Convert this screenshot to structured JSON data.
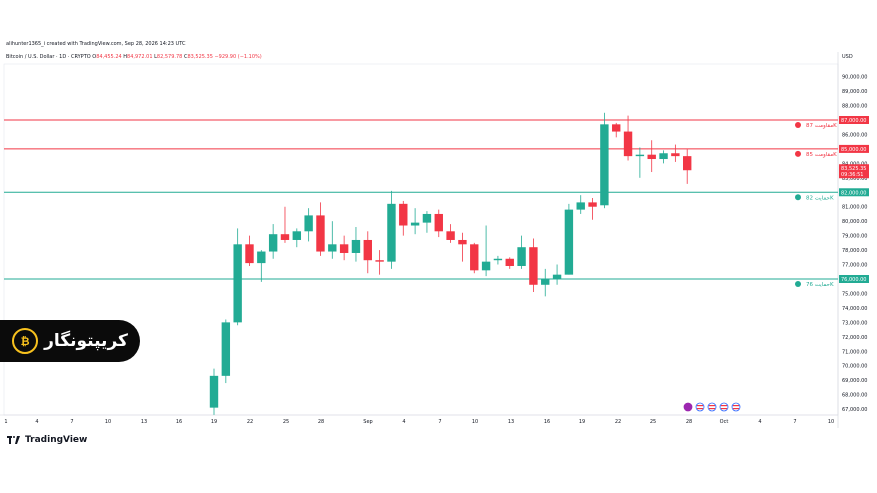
{
  "header": {
    "credit": "alihunter1365_i created with TradingView.com, Sep 28, 2026 14:23 UTC",
    "symbol": "Bitcoin / U.S. Dollar · 1D · CRYPTO",
    "o_label": "O",
    "o_value": "84,455.24",
    "h_label": "H",
    "h_value": "84,972.01",
    "l_label": "L",
    "l_value": "82,579.78",
    "c_label": "C",
    "c_value": "83,525.35",
    "change": "−929.90 (−1.10%)",
    "currency": "USD"
  },
  "watermark": {
    "text": "کریپتونگار",
    "icon": "bitcoin-icon"
  },
  "footer": {
    "brand": "TradingView"
  },
  "price_tag": {
    "price": "83,525.35",
    "countdown": "09:36:51",
    "color": "#f23645"
  },
  "levels": [
    {
      "price": 87000,
      "label": "87,000.00",
      "tag": "مقاومت 87K",
      "color": "#f23645"
    },
    {
      "price": 85000,
      "label": "85,000.00",
      "tag": "مقاومت 85K",
      "color": "#f23645"
    },
    {
      "price": 82000,
      "label": "82,000.00",
      "tag": "حمایت 82K",
      "color": "#22ab94"
    },
    {
      "price": 76000,
      "label": "76,000.00",
      "tag": "حمایت 76K",
      "color": "#22ab94"
    }
  ],
  "chart_data": {
    "type": "candlestick",
    "title": "Bitcoin / U.S. Dollar · 1D · CRYPTO",
    "colors": {
      "up": "#22ab94",
      "down": "#f23645",
      "up_hex_wick": "#22ab94",
      "down_hex_wick": "#f23645"
    },
    "ylim": [
      66500,
      91500
    ],
    "y_ticks": [
      "67,000.00",
      "68,000.00",
      "69,000.00",
      "70,000.00",
      "71,000.00",
      "72,000.00",
      "73,000.00",
      "74,000.00",
      "75,000.00",
      "77,000.00",
      "78,000.00",
      "79,000.00",
      "80,000.00",
      "81,000.00",
      "83,000.00",
      "84,000.00",
      "86,000.00",
      "88,000.00",
      "89,000.00",
      "90,000.00"
    ],
    "x_ticks": [
      "1",
      "4",
      "7",
      "10",
      "13",
      "16",
      "19",
      "22",
      "25",
      "28",
      "Sep",
      "4",
      "7",
      "10",
      "13",
      "16",
      "19",
      "22",
      "25",
      "28",
      "Oct",
      "4",
      "7",
      "10"
    ],
    "candles": [
      {
        "date": "Aug 19",
        "o": 67100,
        "h": 69800,
        "l": 66600,
        "c": 69300
      },
      {
        "date": "Aug 20",
        "o": 69300,
        "h": 73200,
        "l": 68800,
        "c": 73000
      },
      {
        "date": "Aug 21",
        "o": 73000,
        "h": 79500,
        "l": 72800,
        "c": 78400
      },
      {
        "date": "Aug 22",
        "o": 78400,
        "h": 79000,
        "l": 76900,
        "c": 77100
      },
      {
        "date": "Aug 23",
        "o": 77100,
        "h": 78000,
        "l": 75800,
        "c": 77900
      },
      {
        "date": "Aug 24",
        "o": 77900,
        "h": 79800,
        "l": 77400,
        "c": 79100
      },
      {
        "date": "Aug 25",
        "o": 79100,
        "h": 81000,
        "l": 78500,
        "c": 78700
      },
      {
        "date": "Aug 26",
        "o": 78700,
        "h": 79500,
        "l": 78200,
        "c": 79300
      },
      {
        "date": "Aug 27",
        "o": 79300,
        "h": 80900,
        "l": 78600,
        "c": 80400
      },
      {
        "date": "Aug 28",
        "o": 80400,
        "h": 81300,
        "l": 77600,
        "c": 77900
      },
      {
        "date": "Aug 29",
        "o": 77900,
        "h": 80000,
        "l": 77400,
        "c": 78400
      },
      {
        "date": "Aug 30",
        "o": 78400,
        "h": 79000,
        "l": 77300,
        "c": 77800
      },
      {
        "date": "Aug 31",
        "o": 77800,
        "h": 79600,
        "l": 77200,
        "c": 78700
      },
      {
        "date": "Sep 1",
        "o": 78700,
        "h": 79300,
        "l": 76400,
        "c": 77300
      },
      {
        "date": "Sep 2",
        "o": 77300,
        "h": 78000,
        "l": 76300,
        "c": 77200
      },
      {
        "date": "Sep 3",
        "o": 77200,
        "h": 82100,
        "l": 76700,
        "c": 81200
      },
      {
        "date": "Sep 4",
        "o": 81200,
        "h": 81400,
        "l": 79000,
        "c": 79700
      },
      {
        "date": "Sep 5",
        "o": 79700,
        "h": 80900,
        "l": 79100,
        "c": 79900
      },
      {
        "date": "Sep 6",
        "o": 79900,
        "h": 80700,
        "l": 79200,
        "c": 80500
      },
      {
        "date": "Sep 7",
        "o": 80500,
        "h": 80800,
        "l": 78900,
        "c": 79300
      },
      {
        "date": "Sep 8",
        "o": 79300,
        "h": 79800,
        "l": 78500,
        "c": 78700
      },
      {
        "date": "Sep 9",
        "o": 78700,
        "h": 79200,
        "l": 77200,
        "c": 78400
      },
      {
        "date": "Sep 10",
        "o": 78400,
        "h": 78500,
        "l": 76400,
        "c": 76600
      },
      {
        "date": "Sep 11",
        "o": 76600,
        "h": 79700,
        "l": 76200,
        "c": 77200
      },
      {
        "date": "Sep 12",
        "o": 77300,
        "h": 77600,
        "l": 77000,
        "c": 77400
      },
      {
        "date": "Sep 13",
        "o": 77400,
        "h": 77500,
        "l": 76700,
        "c": 76900
      },
      {
        "date": "Sep 14",
        "o": 76900,
        "h": 79000,
        "l": 76700,
        "c": 78200
      },
      {
        "date": "Sep 15",
        "o": 78200,
        "h": 78800,
        "l": 75100,
        "c": 75600
      },
      {
        "date": "Sep 16",
        "o": 75600,
        "h": 76700,
        "l": 74800,
        "c": 76000
      },
      {
        "date": "Sep 17",
        "o": 76000,
        "h": 77000,
        "l": 75600,
        "c": 76300
      },
      {
        "date": "Sep 18",
        "o": 76300,
        "h": 81200,
        "l": 76300,
        "c": 80800
      },
      {
        "date": "Sep 19",
        "o": 80800,
        "h": 81800,
        "l": 80500,
        "c": 81300
      },
      {
        "date": "Sep 20",
        "o": 81300,
        "h": 81600,
        "l": 80100,
        "c": 81000
      },
      {
        "date": "Sep 21",
        "o": 81100,
        "h": 87500,
        "l": 80900,
        "c": 86700
      },
      {
        "date": "Sep 22",
        "o": 86700,
        "h": 86800,
        "l": 85800,
        "c": 86200
      },
      {
        "date": "Sep 23",
        "o": 86200,
        "h": 87300,
        "l": 84200,
        "c": 84500
      },
      {
        "date": "Sep 24",
        "o": 84500,
        "h": 85100,
        "l": 83000,
        "c": 84600
      },
      {
        "date": "Sep 25",
        "o": 84600,
        "h": 85600,
        "l": 83400,
        "c": 84300
      },
      {
        "date": "Sep 26",
        "o": 84300,
        "h": 84900,
        "l": 84000,
        "c": 84700
      },
      {
        "date": "Sep 27",
        "o": 84700,
        "h": 85300,
        "l": 84100,
        "c": 84500
      },
      {
        "date": "Sep 28",
        "o": 84500,
        "h": 84972,
        "l": 82580,
        "c": 83525
      }
    ]
  }
}
